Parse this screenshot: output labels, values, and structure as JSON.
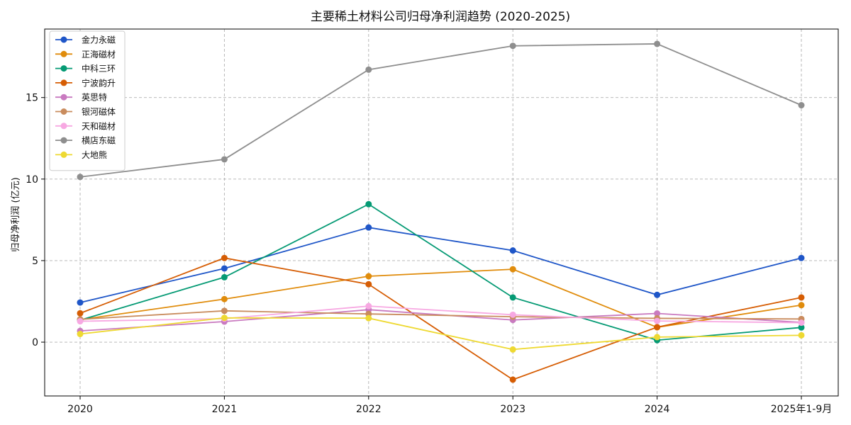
{
  "chart_data": {
    "type": "line",
    "title": "主要稀土材料公司归母净利润趋势 (2020-2025)",
    "xlabel": "",
    "ylabel": "归母净利润 (亿元)",
    "categories": [
      "2020",
      "2021",
      "2022",
      "2023",
      "2024",
      "2025年1-9月"
    ],
    "ylim": [
      -3.3,
      19.2
    ],
    "yticks": [
      0,
      5,
      10,
      15
    ],
    "grid": true,
    "legend_position": "top-left",
    "series": [
      {
        "name": "金力永磁",
        "color": "#1f56c8",
        "values": [
          2.43,
          4.52,
          7.03,
          5.62,
          2.9,
          5.16
        ]
      },
      {
        "name": "正海磁材",
        "color": "#e08c0c",
        "values": [
          1.38,
          2.64,
          4.04,
          4.47,
          0.91,
          2.27
        ]
      },
      {
        "name": "中科三环",
        "color": "#059a74",
        "values": [
          1.35,
          3.98,
          8.46,
          2.74,
          0.12,
          0.9
        ]
      },
      {
        "name": "宁波韵升",
        "color": "#d65d04",
        "values": [
          1.77,
          5.16,
          3.55,
          -2.3,
          0.92,
          2.74
        ]
      },
      {
        "name": "英思特",
        "color": "#c97ac0",
        "values": [
          0.69,
          1.26,
          1.99,
          1.36,
          1.76,
          1.21
        ]
      },
      {
        "name": "银河磁体",
        "color": "#c98c5e",
        "values": [
          1.4,
          1.92,
          1.73,
          1.56,
          1.46,
          1.42
        ]
      },
      {
        "name": "天和磁材",
        "color": "#f7a8e2",
        "values": [
          1.28,
          1.44,
          2.21,
          1.68,
          1.3,
          1.19
        ]
      },
      {
        "name": "横店东磁",
        "color": "#8e8e8e",
        "values": [
          10.13,
          11.21,
          16.71,
          18.17,
          18.29,
          14.53
        ]
      },
      {
        "name": "大地熊",
        "color": "#eed932",
        "values": [
          0.5,
          1.49,
          1.47,
          -0.45,
          0.31,
          0.42
        ]
      }
    ]
  }
}
